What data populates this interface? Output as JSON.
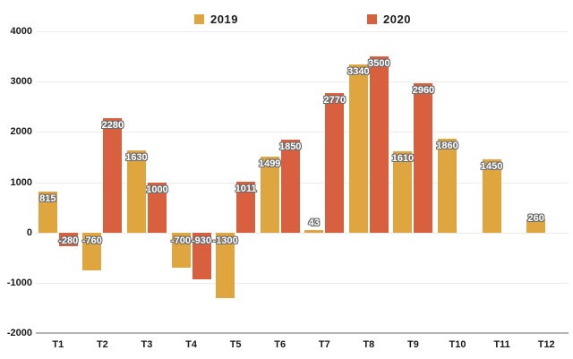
{
  "colors": {
    "background": "#ffffff",
    "grid_line": "#ececec",
    "axis_line": "#b5b5b5",
    "axis_text": "#1a1a1a",
    "bar_label_text": "#ffffff",
    "bar_label_outline": "#6b6b6b",
    "series_2019": "#dfa640",
    "series_2020": "#d9603e"
  },
  "chart_data": {
    "type": "bar",
    "title": "",
    "xlabel": "",
    "ylabel": "",
    "categories": [
      "T1",
      "T2",
      "T3",
      "T4",
      "T5",
      "T6",
      "T7",
      "T8",
      "T9",
      "T10",
      "T11",
      "T12"
    ],
    "series": [
      {
        "name": "2019",
        "color": "#dfa640",
        "values": [
          815,
          -760,
          1630,
          -700,
          -1300,
          1499,
          43,
          3340,
          1610,
          1860,
          1450,
          260
        ]
      },
      {
        "name": "2020",
        "color": "#d9603e",
        "values": [
          -280,
          2280,
          1000,
          -930,
          1011,
          1850,
          2770,
          3500,
          2960,
          null,
          null,
          null
        ]
      }
    ],
    "ylim": [
      -2000,
      4000
    ],
    "yticks": [
      4000,
      3000,
      2000,
      1000,
      0,
      -1000,
      -2000
    ],
    "grid": "horizontal",
    "legend_position": "top",
    "bar_value_labels": "on"
  }
}
